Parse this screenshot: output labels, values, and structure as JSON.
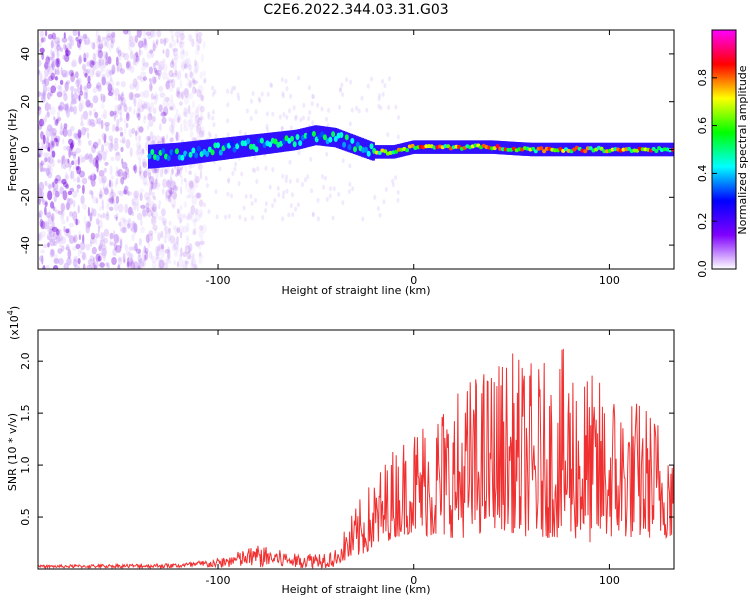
{
  "chart_data": [
    {
      "type": "heatmap",
      "title": "C2E6.2022.344.03.31.G03",
      "xlabel": "Height of straight line (km)",
      "ylabel": "Frequency (Hz)",
      "xlim": [
        -192,
        133
      ],
      "ylim": [
        -50,
        50
      ],
      "xticks": [
        -100,
        0,
        100
      ],
      "yticks": [
        -40,
        -20,
        0,
        20,
        40
      ],
      "colorbar": {
        "label": "Normalized spectral amplitude",
        "range": [
          0,
          1
        ],
        "ticks": [
          "0.0",
          "0.2",
          "0.4",
          "0.6",
          "0.8"
        ],
        "colors": [
          "#ffffff",
          "#7f00ff",
          "#0000ff",
          "#00ffff",
          "#00ff00",
          "#ffff00",
          "#ff0000",
          "#ff00ff"
        ]
      },
      "ridge": {
        "x": [
          -135,
          -120,
          -100,
          -80,
          -60,
          -50,
          -40,
          -30,
          -20,
          -10,
          0,
          20,
          40,
          60,
          80,
          100,
          120,
          133
        ],
        "y": [
          -3,
          -2,
          0,
          2,
          4,
          6,
          5,
          2,
          -1,
          -1,
          1,
          1,
          1,
          0,
          0,
          0,
          0,
          0
        ]
      }
    },
    {
      "type": "line",
      "xlabel": "Height of straight line (km)",
      "ylabel": "SNR (10 * v/v)",
      "scale_label": "(x10",
      "scale_exp": "4",
      "xlim": [
        -192,
        133
      ],
      "ylim": [
        0,
        2.3
      ],
      "xticks": [
        -100,
        0,
        100
      ],
      "yticks": [
        "0.5",
        "1.0",
        "1.5",
        "2.0"
      ],
      "color": "#f03030",
      "envelope": {
        "x": [
          -192,
          -120,
          -100,
          -80,
          -60,
          -40,
          -30,
          -20,
          -10,
          0,
          10,
          20,
          30,
          40,
          50,
          60,
          70,
          80,
          90,
          100,
          110,
          120,
          133
        ],
        "y": [
          0.03,
          0.05,
          0.1,
          0.25,
          0.15,
          0.2,
          0.6,
          0.9,
          1.2,
          1.4,
          1.6,
          1.7,
          1.9,
          2.0,
          2.1,
          2.0,
          2.0,
          2.2,
          1.9,
          1.8,
          1.7,
          1.6,
          1.4
        ]
      },
      "floor": {
        "x": [
          -192,
          -120,
          -100,
          -80,
          -60,
          -40,
          -30,
          -20,
          -10,
          0,
          10,
          20,
          30,
          40,
          50,
          60,
          70,
          80,
          90,
          100,
          110,
          120,
          133
        ],
        "y": [
          0.0,
          0.0,
          0.0,
          0.02,
          0.05,
          0.05,
          0.1,
          0.2,
          0.3,
          0.35,
          0.3,
          0.3,
          0.3,
          0.4,
          0.35,
          0.3,
          0.3,
          0.3,
          0.25,
          0.3,
          0.3,
          0.3,
          0.3
        ]
      }
    }
  ]
}
